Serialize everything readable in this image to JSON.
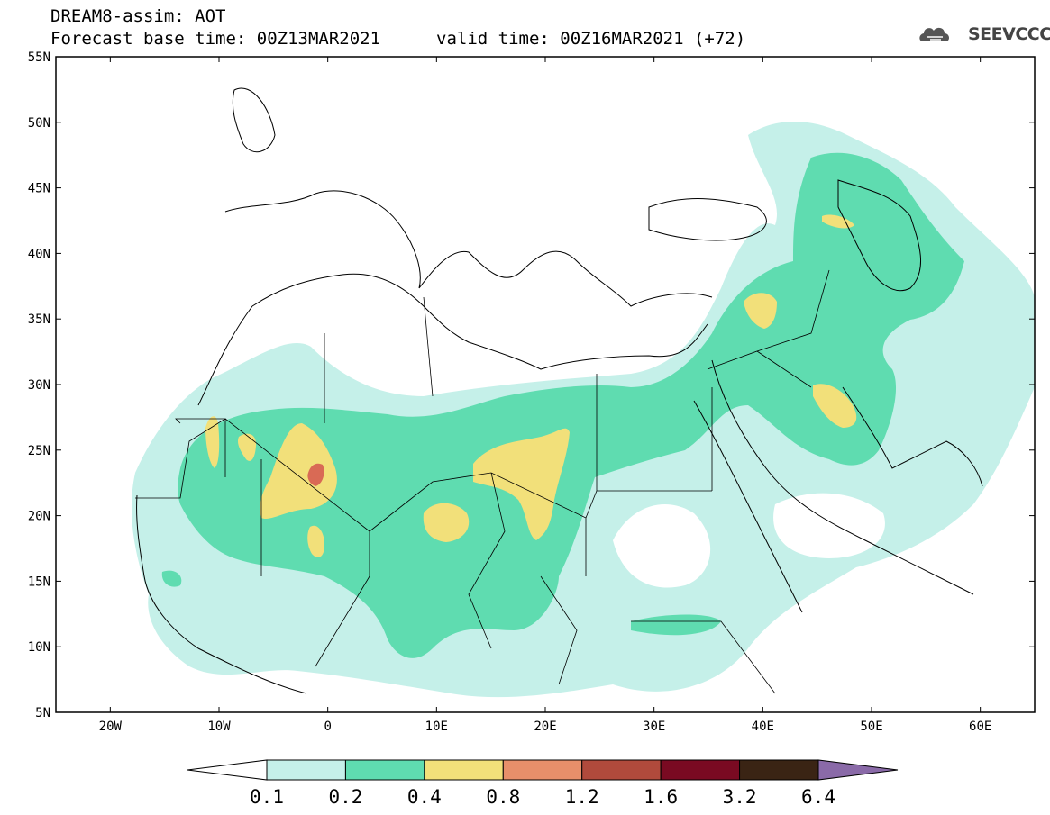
{
  "header": {
    "title": "DREAM8-assim: AOT",
    "base_time": "Forecast base time: 00Z13MAR2021",
    "valid_time": "valid time: 00Z16MAR2021 (+72)"
  },
  "logo": {
    "icon": "cloud-icon",
    "text": "SEEVCCC"
  },
  "map": {
    "lon_range": [
      -25,
      65
    ],
    "lat_range": [
      5,
      55
    ],
    "lat_ticks": [
      {
        "value": 55,
        "label": "55N"
      },
      {
        "value": 50,
        "label": "50N"
      },
      {
        "value": 45,
        "label": "45N"
      },
      {
        "value": 40,
        "label": "40N"
      },
      {
        "value": 35,
        "label": "35N"
      },
      {
        "value": 30,
        "label": "30N"
      },
      {
        "value": 25,
        "label": "25N"
      },
      {
        "value": 20,
        "label": "20N"
      },
      {
        "value": 15,
        "label": "15N"
      },
      {
        "value": 10,
        "label": "10N"
      },
      {
        "value": 5,
        "label": "5N"
      }
    ],
    "lon_ticks": [
      {
        "value": -20,
        "label": "20W"
      },
      {
        "value": -10,
        "label": "10W"
      },
      {
        "value": 0,
        "label": "0"
      },
      {
        "value": 10,
        "label": "10E"
      },
      {
        "value": 20,
        "label": "20E"
      },
      {
        "value": 30,
        "label": "30E"
      },
      {
        "value": 40,
        "label": "40E"
      },
      {
        "value": 50,
        "label": "50E"
      },
      {
        "value": 60,
        "label": "60E"
      }
    ]
  },
  "colorbar": {
    "labels": [
      "0.1",
      "0.2",
      "0.4",
      "0.8",
      "1.2",
      "1.6",
      "3.2",
      "6.4"
    ],
    "colors": [
      "#c5f0e9",
      "#5fdcb0",
      "#f2e07a",
      "#e88f6a",
      "#b04a3c",
      "#7a0a22",
      "#3a2414"
    ],
    "extend_low_color": "#ffffff",
    "extend_high_color": "#8a6aa8"
  }
}
